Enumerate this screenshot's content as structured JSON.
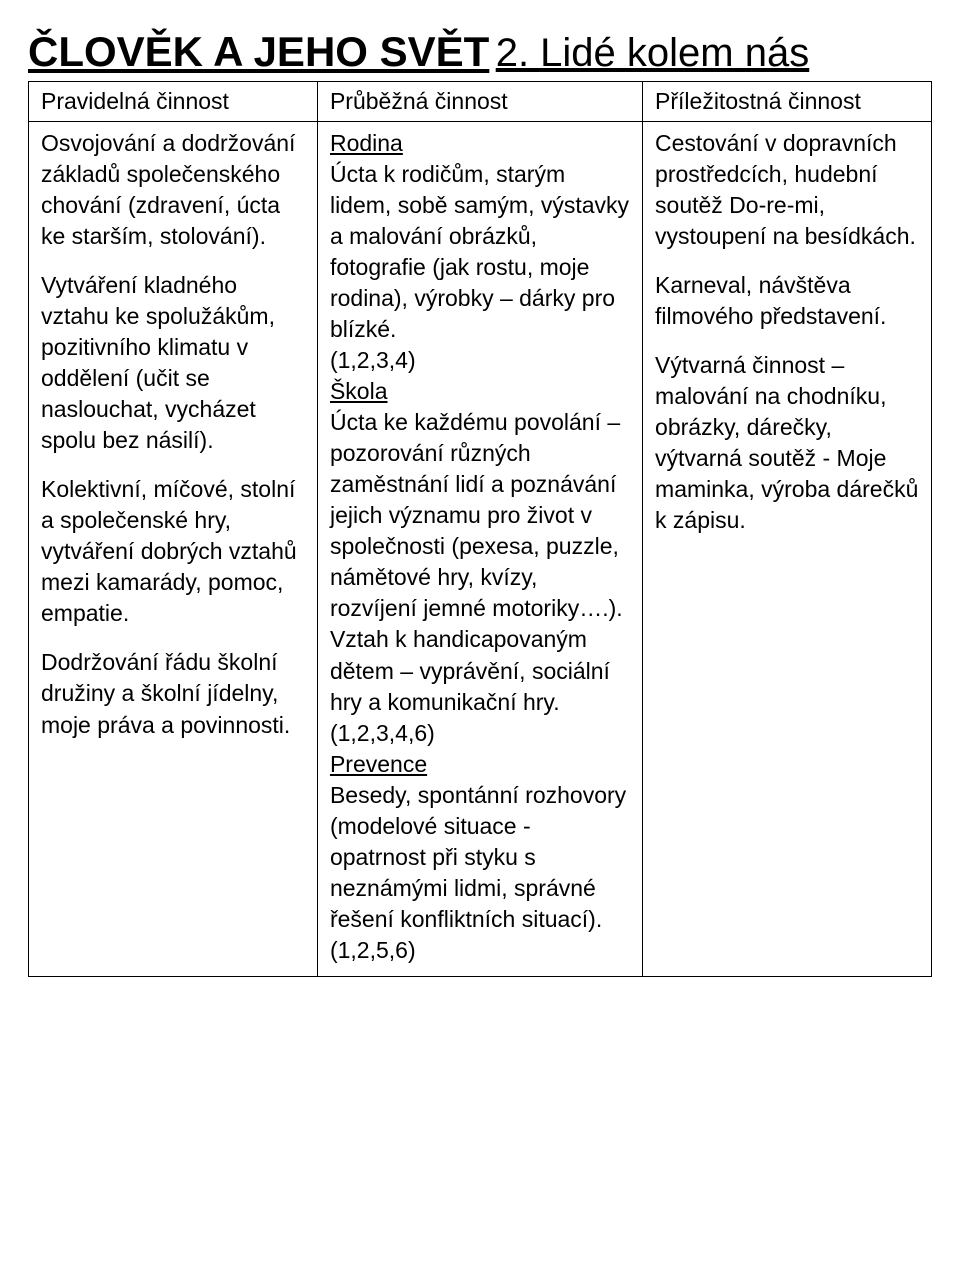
{
  "page": {
    "title": "ČLOVĚK A JEHO SVĚT",
    "subtitle": "2. Lidé kolem nás"
  },
  "headers": {
    "col1": "Pravidelná činnost",
    "col2": "Průběžná činnost",
    "col3": "Příležitostná činnost"
  },
  "col1": {
    "p1": "Osvojování a dodržování základů společenského chování (zdravení, úcta ke starším, stolování).",
    "p2": "Vytváření kladného vztahu ke spolužákům, pozitivního klimatu v oddělení (učit se naslouchat, vycházet spolu bez násilí).",
    "p3": "Kolektivní, míčové, stolní a společenské hry, vytváření dobrých vztahů mezi kamarády, pomoc, empatie.",
    "p4": "Dodržování řádu školní družiny a školní jídelny, moje práva a povinnosti."
  },
  "col2": {
    "h1": "Rodina",
    "t1a": "Úcta k rodičům, starým lidem, sobě samým, výstavky a malování obrázků, fotografie (jak rostu, moje rodina), výrobky – dárky pro blízké.",
    "t1b": "(1,2,3,4)",
    "h2": "Škola",
    "t2a": "Úcta ke každému povolání – pozorování různých zaměstnání lidí a poznávání jejich významu pro život v společnosti (pexesa, puzzle, námětové hry, kvízy, rozvíjení jemné motoriky….).",
    "t2b": "Vztah k handicapovaným dětem – vyprávění, sociální hry a komunikační hry.",
    "t2c": "(1,2,3,4,6)",
    "h3": "Prevence",
    "t3a": "Besedy, spontánní rozhovory (modelové situace - opatrnost při styku s neznámými lidmi, správné řešení konfliktních situací).",
    "t3b": "(1,2,5,6)"
  },
  "col3": {
    "p1": "Cestování v dopravních prostředcích, hudební soutěž Do-re-mi, vystoupení na besídkách.",
    "p2": "Karneval, návštěva filmového představení.",
    "p3": "Výtvarná činnost – malování na chodníku, obrázky, dárečky, výtvarná soutěž -  Moje maminka, výroba dárečků k zápisu."
  }
}
